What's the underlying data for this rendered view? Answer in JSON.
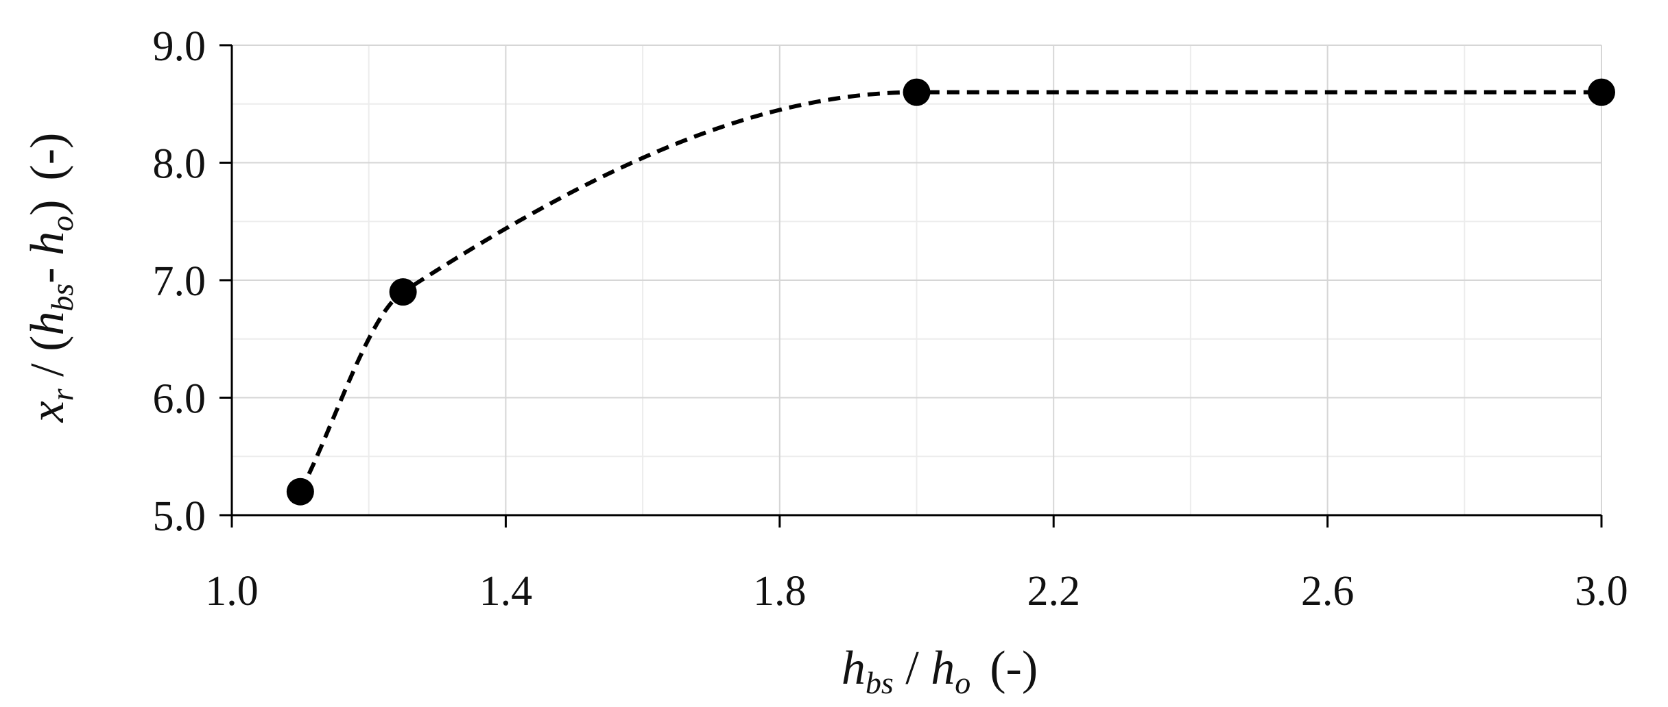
{
  "chart_data": {
    "type": "scatter",
    "title": "",
    "xlabel": {
      "base": "h",
      "sub": "bs",
      "sep": " / ",
      "base2": "h",
      "sub2": "o",
      "unit": "(-)"
    },
    "ylabel": {
      "base": "x",
      "sub": "r",
      "sep": " / (",
      "base2": "h",
      "sub2": "bs",
      "dash": "- ",
      "base3": "h",
      "sub3": "o",
      "close": ")",
      "unit": "(-)"
    },
    "xlim": [
      1.0,
      3.0
    ],
    "ylim": [
      5.0,
      9.0
    ],
    "x_major_ticks": [
      1.0,
      1.4,
      1.8,
      2.2,
      2.6,
      3.0
    ],
    "x_tick_labels": [
      "1.0",
      "1.4",
      "1.8",
      "2.2",
      "2.6",
      "3.0"
    ],
    "x_minor_step": 0.2,
    "y_major_ticks": [
      5.0,
      6.0,
      7.0,
      8.0,
      9.0
    ],
    "y_tick_labels": [
      "5.0",
      "6.0",
      "7.0",
      "8.0",
      "9.0"
    ],
    "y_minor_step": 0.5,
    "grid": true,
    "legend": "none",
    "series": [
      {
        "x": [
          1.1,
          1.25,
          2.0,
          3.0
        ],
        "y": [
          5.2,
          6.9,
          8.6,
          8.6
        ],
        "marker": "filled-circle",
        "color": "#000000",
        "line": "dashed-smooth"
      }
    ]
  }
}
